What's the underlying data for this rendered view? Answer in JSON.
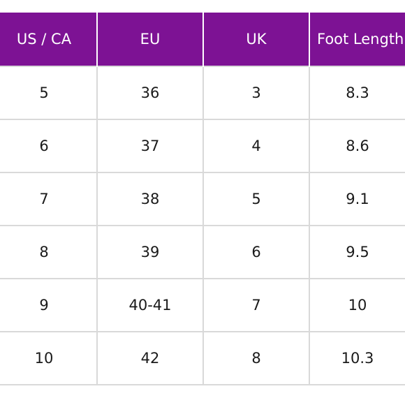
{
  "table": {
    "headers": [
      "US / CA",
      "EU",
      "UK",
      "Foot Length"
    ],
    "rows": [
      [
        "5",
        "36",
        "3",
        "8.3"
      ],
      [
        "6",
        "37",
        "4",
        "8.6"
      ],
      [
        "7",
        "38",
        "5",
        "9.1"
      ],
      [
        "8",
        "39",
        "6",
        "9.5"
      ],
      [
        "9",
        "40-41",
        "7",
        "10"
      ],
      [
        "10",
        "42",
        "8",
        "10.3"
      ]
    ],
    "header_color": "#7d1294"
  }
}
